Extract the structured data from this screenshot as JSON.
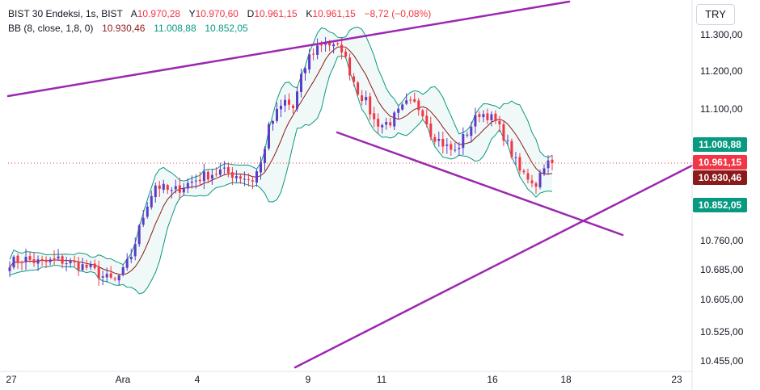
{
  "currency_button": "TRY",
  "legend": {
    "symbol": "BIST 30 Endeksi",
    "interval": "1s",
    "exchange": "BIST",
    "open_label": "A",
    "open": "10.970,28",
    "high_label": "Y",
    "high": "10.970,60",
    "low_label": "D",
    "low": "10.961,15",
    "close_label": "K",
    "close": "10.961,15",
    "change": "−8,72 (−0,08%)",
    "indicator": "BB (8, close, 1,8, 0)",
    "bb_basis": "10.930,46",
    "bb_upper": "11.008,88",
    "bb_lower": "10.852,05"
  },
  "chart_data": {
    "type": "candlestick",
    "y_ticks": [
      "11.300,00",
      "11.200,00",
      "11.100,00",
      "10.760,00",
      "10.685,00",
      "10.605,00",
      "10.525,00",
      "10.455,00"
    ],
    "x_ticks": [
      "27",
      "Ara",
      "4",
      "9",
      "11",
      "16",
      "18",
      "23"
    ],
    "price_labels": [
      {
        "text": "11.008,88",
        "value": 11008.88,
        "color": "#089981"
      },
      {
        "text": "10.961,15",
        "value": 10961.15,
        "color": "#f23645"
      },
      {
        "text": "10.930,46",
        "value": 10930.46,
        "color": "#8b1a1a"
      },
      {
        "text": "10.852,05",
        "value": 10852.05,
        "color": "#089981"
      }
    ],
    "close_line_value": 10961.15,
    "colors": {
      "up": "#5b3cc4",
      "down": "#f23645",
      "basis": "#8b1a1a",
      "band": "#089981",
      "trendline": "#9c27b0"
    }
  }
}
